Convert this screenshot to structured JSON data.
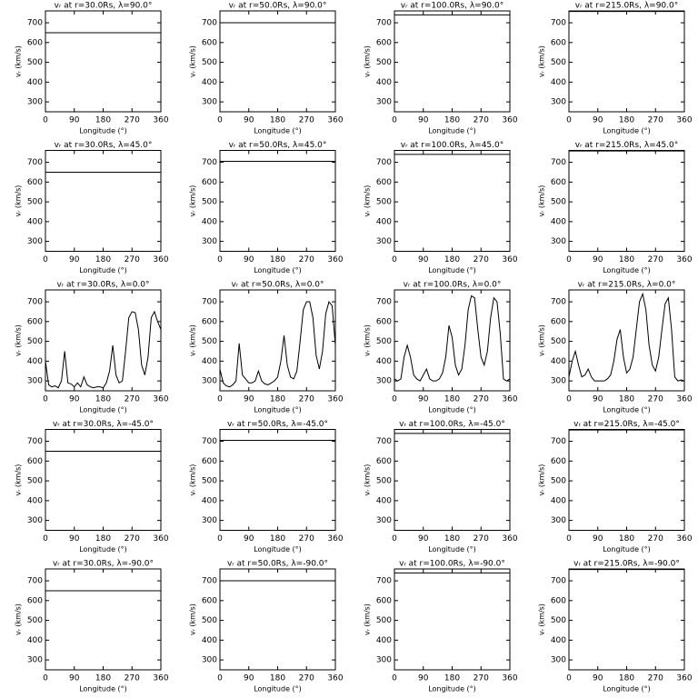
{
  "chart_data": [
    {
      "type": "line",
      "title": "vᵣ at r=30.0Rs,  λ=90.0°",
      "xlabel": "Longitude (°)",
      "ylabel": "vᵣ (km/s)",
      "x": [
        0,
        360
      ],
      "series": [
        {
          "color": "#000000",
          "values": [
            650,
            650
          ]
        }
      ],
      "xlim": [
        0,
        360
      ],
      "xticks": [
        0,
        90,
        180,
        270,
        360
      ],
      "ylim": [
        250,
        760
      ],
      "yticks": [
        300,
        400,
        500,
        600,
        700
      ]
    },
    {
      "type": "line",
      "title": "vᵣ at r=50.0Rs,  λ=90.0°",
      "xlabel": "Longitude (°)",
      "ylabel": "vᵣ (km/s)",
      "x": [
        0,
        360
      ],
      "series": [
        {
          "color": "#000000",
          "values": [
            700,
            700
          ]
        }
      ],
      "xlim": [
        0,
        360
      ],
      "xticks": [
        0,
        90,
        180,
        270,
        360
      ],
      "ylim": [
        250,
        760
      ],
      "yticks": [
        300,
        400,
        500,
        600,
        700
      ]
    },
    {
      "type": "line",
      "title": "vᵣ at r=100.0Rs,  λ=90.0°",
      "xlabel": "Longitude (°)",
      "ylabel": "vᵣ (km/s)",
      "x": [
        0,
        360
      ],
      "series": [
        {
          "color": "#000000",
          "values": [
            740,
            740
          ]
        }
      ],
      "xlim": [
        0,
        360
      ],
      "xticks": [
        0,
        90,
        180,
        270,
        360
      ],
      "ylim": [
        250,
        760
      ],
      "yticks": [
        300,
        400,
        500,
        600,
        700
      ]
    },
    {
      "type": "line",
      "title": "vᵣ at r=215.0Rs,  λ=90.0°",
      "xlabel": "Longitude (°)",
      "ylabel": "vᵣ (km/s)",
      "x": [
        0,
        360
      ],
      "series": [
        {
          "color": "#000000",
          "values": [
            757,
            757
          ]
        }
      ],
      "xlim": [
        0,
        360
      ],
      "xticks": [
        0,
        90,
        180,
        270,
        360
      ],
      "ylim": [
        250,
        760
      ],
      "yticks": [
        300,
        400,
        500,
        600,
        700
      ]
    },
    {
      "type": "line",
      "title": "vᵣ at r=30.0Rs,  λ=45.0°",
      "xlabel": "Longitude (°)",
      "ylabel": "vᵣ (km/s)",
      "x": [
        0,
        360
      ],
      "series": [
        {
          "color": "#000000",
          "values": [
            650,
            650
          ]
        }
      ],
      "xlim": [
        0,
        360
      ],
      "xticks": [
        0,
        90,
        180,
        270,
        360
      ],
      "ylim": [
        250,
        760
      ],
      "yticks": [
        300,
        400,
        500,
        600,
        700
      ]
    },
    {
      "type": "line",
      "title": "vᵣ at r=50.0Rs,  λ=45.0°",
      "xlabel": "Longitude (°)",
      "ylabel": "vᵣ (km/s)",
      "x": [
        0,
        360
      ],
      "series": [
        {
          "color": "#000000",
          "values": [
            705,
            705
          ]
        }
      ],
      "xlim": [
        0,
        360
      ],
      "xticks": [
        0,
        90,
        180,
        270,
        360
      ],
      "ylim": [
        250,
        760
      ],
      "yticks": [
        300,
        400,
        500,
        600,
        700
      ]
    },
    {
      "type": "line",
      "title": "vᵣ at r=100.0Rs,  λ=45.0°",
      "xlabel": "Longitude (°)",
      "ylabel": "vᵣ (km/s)",
      "x": [
        0,
        360
      ],
      "series": [
        {
          "color": "#000000",
          "values": [
            740,
            740
          ]
        }
      ],
      "xlim": [
        0,
        360
      ],
      "xticks": [
        0,
        90,
        180,
        270,
        360
      ],
      "ylim": [
        250,
        760
      ],
      "yticks": [
        300,
        400,
        500,
        600,
        700
      ]
    },
    {
      "type": "line",
      "title": "vᵣ at r=215.0Rs,  λ=45.0°",
      "xlabel": "Longitude (°)",
      "ylabel": "vᵣ (km/s)",
      "x": [
        0,
        360
      ],
      "series": [
        {
          "color": "#000000",
          "values": [
            757,
            757
          ]
        }
      ],
      "xlim": [
        0,
        360
      ],
      "xticks": [
        0,
        90,
        180,
        270,
        360
      ],
      "ylim": [
        250,
        760
      ],
      "yticks": [
        300,
        400,
        500,
        600,
        700
      ]
    },
    {
      "type": "line",
      "title": "vᵣ at r=30.0Rs,  λ=0.0°",
      "xlabel": "Longitude (°)",
      "ylabel": "vᵣ (km/s)",
      "x": [
        0,
        10,
        20,
        30,
        40,
        50,
        60,
        70,
        80,
        90,
        100,
        110,
        120,
        130,
        140,
        150,
        160,
        170,
        180,
        190,
        200,
        210,
        220,
        230,
        240,
        250,
        260,
        270,
        280,
        290,
        300,
        310,
        320,
        330,
        340,
        350,
        360
      ],
      "series": [
        {
          "color": "#000000",
          "values": [
            400,
            280,
            270,
            275,
            265,
            300,
            450,
            290,
            285,
            270,
            290,
            270,
            320,
            280,
            270,
            265,
            270,
            270,
            265,
            290,
            350,
            480,
            330,
            290,
            300,
            450,
            620,
            650,
            645,
            560,
            380,
            330,
            420,
            620,
            650,
            600,
            560
          ]
        }
      ],
      "xlim": [
        0,
        360
      ],
      "xticks": [
        0,
        90,
        180,
        270,
        360
      ],
      "ylim": [
        250,
        760
      ],
      "yticks": [
        300,
        400,
        500,
        600,
        700
      ]
    },
    {
      "type": "line",
      "title": "vᵣ at r=50.0Rs,  λ=0.0°",
      "xlabel": "Longitude (°)",
      "ylabel": "vᵣ (km/s)",
      "x": [
        0,
        10,
        20,
        30,
        40,
        50,
        60,
        70,
        80,
        90,
        100,
        110,
        120,
        130,
        140,
        150,
        160,
        170,
        180,
        190,
        200,
        210,
        220,
        230,
        240,
        250,
        260,
        270,
        280,
        290,
        300,
        310,
        320,
        330,
        340,
        350,
        360
      ],
      "series": [
        {
          "color": "#000000",
          "values": [
            360,
            290,
            275,
            270,
            280,
            300,
            490,
            330,
            310,
            290,
            290,
            300,
            350,
            300,
            285,
            280,
            290,
            300,
            320,
            400,
            530,
            380,
            320,
            310,
            350,
            500,
            660,
            700,
            700,
            620,
            430,
            360,
            450,
            640,
            700,
            680,
            480
          ]
        }
      ],
      "xlim": [
        0,
        360
      ],
      "xticks": [
        0,
        90,
        180,
        270,
        360
      ],
      "ylim": [
        250,
        760
      ],
      "yticks": [
        300,
        400,
        500,
        600,
        700
      ]
    },
    {
      "type": "line",
      "title": "vᵣ at r=100.0Rs,  λ=0.0°",
      "xlabel": "Longitude (°)",
      "ylabel": "vᵣ (km/s)",
      "x": [
        0,
        10,
        20,
        30,
        40,
        50,
        60,
        70,
        80,
        90,
        100,
        110,
        120,
        130,
        140,
        150,
        160,
        170,
        180,
        190,
        200,
        210,
        220,
        230,
        240,
        250,
        260,
        270,
        280,
        290,
        300,
        310,
        320,
        330,
        340,
        350,
        360
      ],
      "series": [
        {
          "color": "#000000",
          "values": [
            310,
            300,
            310,
            420,
            480,
            420,
            330,
            310,
            300,
            330,
            360,
            310,
            300,
            300,
            310,
            340,
            420,
            580,
            520,
            380,
            330,
            360,
            480,
            660,
            730,
            720,
            560,
            420,
            380,
            450,
            620,
            720,
            700,
            540,
            310,
            300,
            310
          ]
        }
      ],
      "xlim": [
        0,
        360
      ],
      "xticks": [
        0,
        90,
        180,
        270,
        360
      ],
      "ylim": [
        250,
        760
      ],
      "yticks": [
        300,
        400,
        500,
        600,
        700
      ]
    },
    {
      "type": "line",
      "title": "vᵣ at r=215.0Rs,  λ=0.0°",
      "xlabel": "Longitude (°)",
      "ylabel": "vᵣ (km/s)",
      "x": [
        0,
        10,
        20,
        30,
        40,
        50,
        60,
        70,
        80,
        90,
        100,
        110,
        120,
        130,
        140,
        150,
        160,
        170,
        180,
        190,
        200,
        210,
        220,
        230,
        240,
        250,
        260,
        270,
        280,
        290,
        300,
        310,
        320,
        330,
        340,
        350,
        360
      ],
      "series": [
        {
          "color": "#000000",
          "values": [
            320,
            400,
            450,
            380,
            320,
            330,
            360,
            320,
            300,
            300,
            300,
            300,
            310,
            330,
            400,
            510,
            560,
            420,
            340,
            360,
            420,
            560,
            700,
            740,
            660,
            480,
            380,
            350,
            420,
            560,
            690,
            720,
            560,
            320,
            300,
            305,
            300
          ]
        }
      ],
      "xlim": [
        0,
        360
      ],
      "xticks": [
        0,
        90,
        180,
        270,
        360
      ],
      "ylim": [
        250,
        760
      ],
      "yticks": [
        300,
        400,
        500,
        600,
        700
      ]
    },
    {
      "type": "line",
      "title": "vᵣ at r=30.0Rs,  λ=-45.0°",
      "xlabel": "Longitude (°)",
      "ylabel": "vᵣ (km/s)",
      "x": [
        0,
        360
      ],
      "series": [
        {
          "color": "#000000",
          "values": [
            650,
            650
          ]
        }
      ],
      "xlim": [
        0,
        360
      ],
      "xticks": [
        0,
        90,
        180,
        270,
        360
      ],
      "ylim": [
        250,
        760
      ],
      "yticks": [
        300,
        400,
        500,
        600,
        700
      ]
    },
    {
      "type": "line",
      "title": "vᵣ at r=50.0Rs,  λ=-45.0°",
      "xlabel": "Longitude (°)",
      "ylabel": "vᵣ (km/s)",
      "x": [
        0,
        360
      ],
      "series": [
        {
          "color": "#000000",
          "values": [
            705,
            705
          ]
        }
      ],
      "xlim": [
        0,
        360
      ],
      "xticks": [
        0,
        90,
        180,
        270,
        360
      ],
      "ylim": [
        250,
        760
      ],
      "yticks": [
        300,
        400,
        500,
        600,
        700
      ]
    },
    {
      "type": "line",
      "title": "vᵣ at r=100.0Rs,  λ=-45.0°",
      "xlabel": "Longitude (°)",
      "ylabel": "vᵣ (km/s)",
      "x": [
        0,
        360
      ],
      "series": [
        {
          "color": "#000000",
          "values": [
            740,
            740
          ]
        }
      ],
      "xlim": [
        0,
        360
      ],
      "xticks": [
        0,
        90,
        180,
        270,
        360
      ],
      "ylim": [
        250,
        760
      ],
      "yticks": [
        300,
        400,
        500,
        600,
        700
      ]
    },
    {
      "type": "line",
      "title": "vᵣ at r=215.0Rs,  λ=-45.0°",
      "xlabel": "Longitude (°)",
      "ylabel": "vᵣ (km/s)",
      "x": [
        0,
        360
      ],
      "series": [
        {
          "color": "#000000",
          "values": [
            757,
            757
          ]
        }
      ],
      "xlim": [
        0,
        360
      ],
      "xticks": [
        0,
        90,
        180,
        270,
        360
      ],
      "ylim": [
        250,
        760
      ],
      "yticks": [
        300,
        400,
        500,
        600,
        700
      ]
    },
    {
      "type": "line",
      "title": "vᵣ at r=30.0Rs,  λ=-90.0°",
      "xlabel": "Longitude (°)",
      "ylabel": "vᵣ (km/s)",
      "x": [
        0,
        360
      ],
      "series": [
        {
          "color": "#000000",
          "values": [
            650,
            650
          ]
        }
      ],
      "xlim": [
        0,
        360
      ],
      "xticks": [
        0,
        90,
        180,
        270,
        360
      ],
      "ylim": [
        250,
        760
      ],
      "yticks": [
        300,
        400,
        500,
        600,
        700
      ]
    },
    {
      "type": "line",
      "title": "vᵣ at r=50.0Rs,  λ=-90.0°",
      "xlabel": "Longitude (°)",
      "ylabel": "vᵣ (km/s)",
      "x": [
        0,
        360
      ],
      "series": [
        {
          "color": "#000000",
          "values": [
            700,
            700
          ]
        }
      ],
      "xlim": [
        0,
        360
      ],
      "xticks": [
        0,
        90,
        180,
        270,
        360
      ],
      "ylim": [
        250,
        760
      ],
      "yticks": [
        300,
        400,
        500,
        600,
        700
      ]
    },
    {
      "type": "line",
      "title": "vᵣ at r=100.0Rs,  λ=-90.0°",
      "xlabel": "Longitude (°)",
      "ylabel": "vᵣ (km/s)",
      "x": [
        0,
        360
      ],
      "series": [
        {
          "color": "#000000",
          "values": [
            740,
            740
          ]
        }
      ],
      "xlim": [
        0,
        360
      ],
      "xticks": [
        0,
        90,
        180,
        270,
        360
      ],
      "ylim": [
        250,
        760
      ],
      "yticks": [
        300,
        400,
        500,
        600,
        700
      ]
    },
    {
      "type": "line",
      "title": "vᵣ at r=215.0Rs,  λ=-90.0°",
      "xlabel": "Longitude (°)",
      "ylabel": "vᵣ (km/s)",
      "x": [
        0,
        360
      ],
      "series": [
        {
          "color": "#000000",
          "values": [
            757,
            757
          ]
        }
      ],
      "xlim": [
        0,
        360
      ],
      "xticks": [
        0,
        90,
        180,
        270,
        360
      ],
      "ylim": [
        250,
        760
      ],
      "yticks": [
        300,
        400,
        500,
        600,
        700
      ]
    }
  ]
}
